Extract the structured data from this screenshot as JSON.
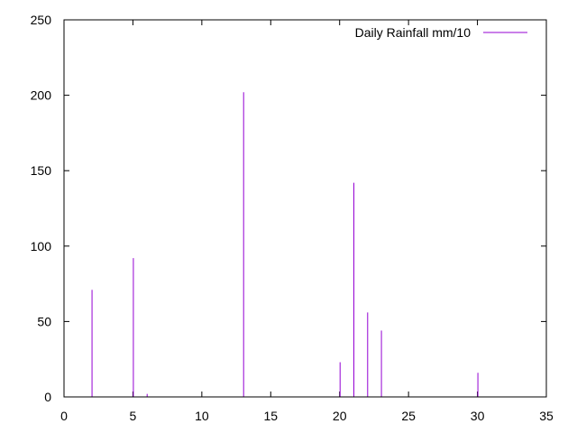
{
  "chart_data": {
    "type": "bar",
    "title": "",
    "xlabel": "",
    "ylabel": "",
    "xlim": [
      0,
      35
    ],
    "ylim": [
      0,
      250
    ],
    "x_ticks": [
      0,
      5,
      10,
      15,
      20,
      25,
      30,
      35
    ],
    "y_ticks": [
      0,
      50,
      100,
      150,
      200,
      250
    ],
    "x_tick_labels": [
      "0",
      "5",
      "10",
      "15",
      "20",
      "25",
      "30",
      "35"
    ],
    "y_tick_labels": [
      "0",
      "50",
      "100",
      "150",
      "200",
      "250"
    ],
    "grid": false,
    "legend_position": "top-right",
    "series": [
      {
        "name": "Daily Rainfall mm/10",
        "color": "#9400d3",
        "style": "impulses",
        "x": [
          2,
          5,
          6,
          13,
          20,
          21,
          22,
          23,
          30
        ],
        "y": [
          71,
          92,
          2,
          202,
          23,
          142,
          56,
          44,
          16
        ]
      }
    ]
  }
}
